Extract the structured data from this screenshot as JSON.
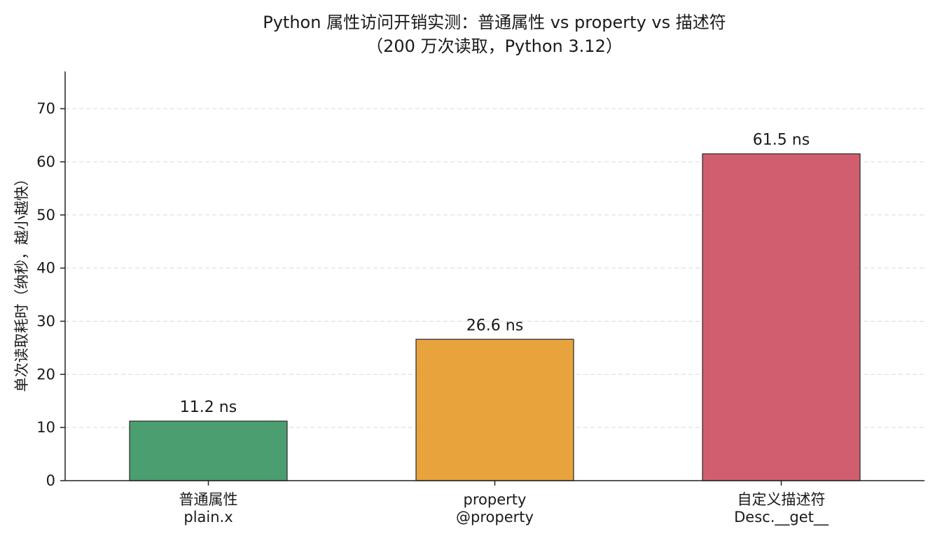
{
  "chart_data": {
    "type": "bar",
    "title": "Python 属性访问开销实测：普通属性 vs property vs 描述符",
    "subtitle": "（200 万次读取，Python 3.12）",
    "xlabel": "",
    "ylabel": "单次读取耗时（纳秒，越小越快）",
    "ylim": [
      0,
      77
    ],
    "yticks": [
      0,
      10,
      20,
      30,
      40,
      50,
      60,
      70
    ],
    "grid": true,
    "categories": [
      {
        "line1": "普通属性",
        "line2": "plain.x"
      },
      {
        "line1": "property",
        "line2": "@property"
      },
      {
        "line1": "自定义描述符",
        "line2": "Desc.__get__"
      }
    ],
    "values": [
      11.2,
      26.6,
      61.5
    ],
    "data_labels": [
      "11.2 ns",
      "26.6 ns",
      "61.5 ns"
    ],
    "colors": [
      "#4a9e6f",
      "#e8a33d",
      "#d15e6e"
    ]
  }
}
